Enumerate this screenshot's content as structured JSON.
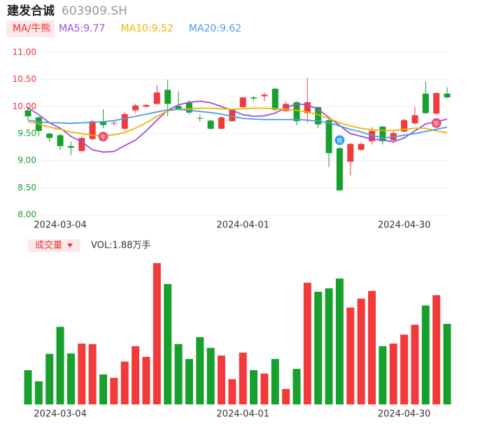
{
  "header": {
    "name": "建发合诚",
    "code": "603909.SH"
  },
  "chart_data": {
    "type": "candlestick",
    "indicator_button": "MA/牛熊",
    "categories": [
      null,
      null,
      null,
      "2024-03-04",
      null,
      null,
      null,
      null,
      null,
      null,
      null,
      null,
      null,
      null,
      null,
      null,
      null,
      null,
      null,
      null,
      "2024-04-01",
      null,
      null,
      null,
      null,
      null,
      null,
      null,
      null,
      null,
      null,
      null,
      null,
      null,
      null,
      "2024-04-30",
      null,
      null,
      null,
      null
    ],
    "open": [
      9.93,
      9.8,
      9.5,
      9.47,
      9.27,
      9.18,
      9.4,
      9.73,
      9.69,
      9.59,
      9.93,
      10.0,
      10.05,
      10.31,
      10.01,
      10.07,
      9.79,
      9.74,
      9.59,
      9.73,
      9.99,
      10.17,
      10.19,
      10.33,
      9.92,
      10.08,
      9.88,
      9.99,
      9.75,
      9.23,
      8.98,
      9.2,
      9.36,
      9.63,
      9.38,
      9.54,
      9.69,
      10.24,
      9.87,
      10.24
    ],
    "close": [
      9.82,
      9.55,
      9.42,
      9.27,
      9.24,
      9.42,
      9.73,
      9.66,
      9.7,
      9.86,
      10.02,
      10.03,
      10.26,
      10.05,
      9.96,
      9.89,
      9.78,
      9.59,
      9.8,
      9.94,
      10.17,
      10.15,
      10.22,
      9.94,
      10.05,
      9.73,
      10.08,
      9.67,
      9.14,
      8.45,
      9.31,
      9.31,
      9.55,
      9.36,
      9.51,
      9.75,
      9.84,
      9.88,
      10.25,
      10.17
    ],
    "high": [
      10.0,
      9.82,
      9.52,
      9.5,
      9.35,
      9.45,
      9.75,
      9.95,
      9.72,
      9.9,
      10.05,
      10.05,
      10.4,
      10.5,
      10.28,
      10.12,
      9.85,
      9.76,
      9.82,
      9.96,
      10.18,
      10.2,
      10.26,
      10.34,
      10.1,
      10.1,
      10.53,
      10.0,
      9.78,
      9.25,
      9.33,
      9.35,
      9.62,
      9.65,
      9.55,
      9.78,
      10.0,
      10.46,
      10.27,
      10.36
    ],
    "low": [
      9.75,
      9.45,
      9.35,
      9.2,
      9.1,
      9.15,
      9.38,
      9.6,
      9.65,
      9.55,
      9.88,
      9.98,
      10.03,
      9.82,
      9.93,
      9.85,
      9.72,
      9.57,
      9.58,
      9.72,
      9.98,
      10.1,
      10.1,
      9.92,
      9.9,
      9.65,
      9.7,
      9.6,
      8.88,
      8.45,
      8.73,
      9.18,
      9.3,
      9.3,
      9.32,
      9.52,
      9.67,
      9.86,
      9.85,
      10.15
    ],
    "up_color": "#f23a3a",
    "down_color": "#16a02c",
    "series": [
      {
        "name": "MA5",
        "label": "MA5:9.77",
        "color": "#9b4ee0",
        "values": [
          9.98,
          9.85,
          9.7,
          9.6,
          9.45,
          9.35,
          9.2,
          9.16,
          9.17,
          9.28,
          9.38,
          9.55,
          9.75,
          9.93,
          10.03,
          10.08,
          10.1,
          10.07,
          10.0,
          9.93,
          9.85,
          9.82,
          9.83,
          9.88,
          9.98,
          10.05,
          10.03,
          9.95,
          9.8,
          9.65,
          9.5,
          9.45,
          9.4,
          9.38,
          9.35,
          9.42,
          9.55,
          9.68,
          9.72,
          9.77
        ]
      },
      {
        "name": "MA10",
        "label": "MA10:9.52",
        "color": "#f0b400",
        "values": [
          9.72,
          9.68,
          9.62,
          9.58,
          9.53,
          9.5,
          9.47,
          9.46,
          9.48,
          9.52,
          9.6,
          9.7,
          9.82,
          9.92,
          9.95,
          9.96,
          9.97,
          9.97,
          9.96,
          9.95,
          9.96,
          9.97,
          9.97,
          9.96,
          9.95,
          9.93,
          9.9,
          9.85,
          9.78,
          9.7,
          9.64,
          9.6,
          9.57,
          9.56,
          9.56,
          9.58,
          9.6,
          9.6,
          9.55,
          9.52
        ]
      },
      {
        "name": "MA20",
        "label": "MA20:9.62",
        "color": "#4a9de8",
        "values": [
          9.75,
          9.72,
          9.7,
          9.7,
          9.69,
          9.7,
          9.71,
          9.72,
          9.74,
          9.78,
          9.82,
          9.86,
          9.9,
          9.94,
          9.95,
          9.93,
          9.91,
          9.89,
          9.86,
          9.82,
          9.78,
          9.77,
          9.76,
          9.76,
          9.76,
          9.76,
          9.75,
          9.73,
          9.7,
          9.64,
          9.58,
          9.53,
          9.47,
          9.42,
          9.44,
          9.47,
          9.5,
          9.54,
          9.58,
          9.62
        ]
      }
    ],
    "ylim": [
      8.0,
      11.0
    ],
    "yticks": [
      {
        "value": 11,
        "label": "11.00",
        "color": "#e33"
      },
      {
        "value": 10.5,
        "label": "10.50",
        "color": "#e33"
      },
      {
        "value": 10,
        "label": "10.00",
        "color": "#e33"
      },
      {
        "value": 9.5,
        "label": "9.50",
        "color": "#16a02c"
      },
      {
        "value": 9,
        "label": "9.00",
        "color": "#16a02c"
      },
      {
        "value": 8.5,
        "label": "8.50",
        "color": "#16a02c"
      },
      {
        "value": 8,
        "label": "8.00",
        "color": "#16a02c"
      }
    ],
    "grid": true,
    "signals": [
      {
        "index": 7,
        "label": "牛",
        "color": "#f0506e"
      },
      {
        "index": 29,
        "label": "熊",
        "color": "#2aa0f0"
      },
      {
        "index": 38,
        "label": "牛",
        "color": "#f0506e"
      }
    ],
    "volume": {
      "button": "成交量",
      "label": "VOL:1.88万手",
      "values": [
        0.8,
        0.54,
        1.18,
        1.81,
        1.19,
        1.42,
        1.41,
        0.7,
        0.62,
        1.0,
        1.36,
        1.11,
        3.3,
        2.81,
        1.41,
        1.06,
        1.57,
        1.32,
        1.14,
        0.59,
        1.21,
        0.8,
        0.72,
        1.06,
        0.36,
        0.83,
        2.84,
        2.63,
        2.71,
        2.94,
        2.26,
        2.47,
        2.65,
        1.36,
        1.42,
        1.63,
        1.86,
        2.31,
        2.55,
        1.88
      ],
      "ylim": [
        0,
        3.3
      ]
    }
  }
}
